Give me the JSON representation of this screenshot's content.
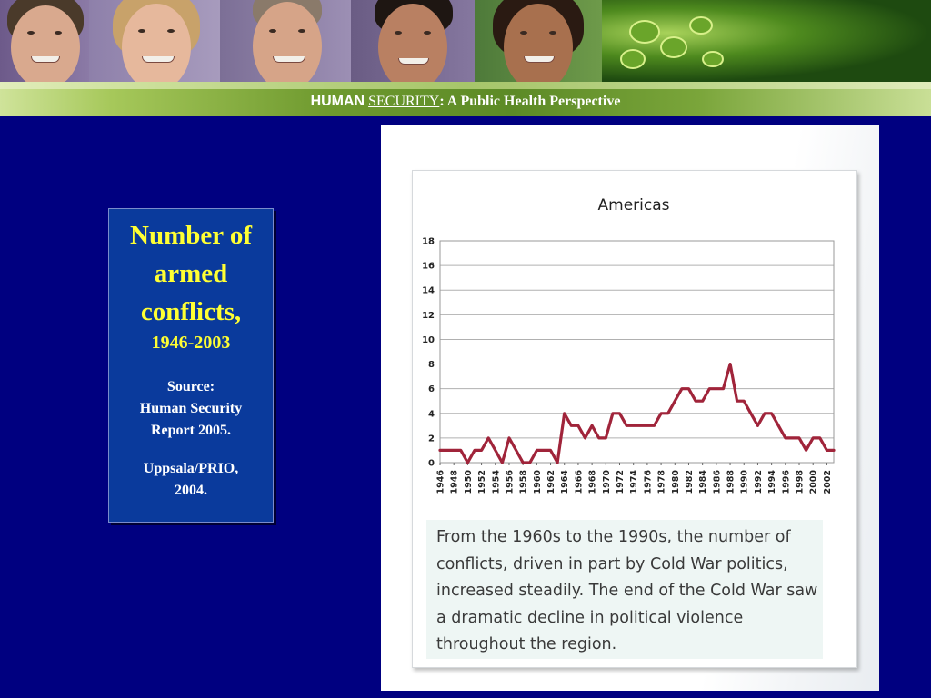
{
  "header": {
    "title_word1": "HUMAN",
    "title_word2": "SECURITY",
    "title_rest": ": A Public Health Perspective"
  },
  "info_box": {
    "title_line1": "Number of",
    "title_line2": "armed",
    "title_line3": "conflicts,",
    "years": "1946-2003",
    "source_label": "Source:",
    "source_line1": "Human Security",
    "source_line2": "Report 2005.",
    "source2_line1": "Uppsala/PRIO,",
    "source2_line2": "2004."
  },
  "caption": "From the 1960s to the 1990s, the number of conflicts, driven in part by Cold War politics, increased steadily. The end of the Cold War saw a dramatic decline in political violence throughout the region.",
  "colors": {
    "line": "#a0243a",
    "background": "#000080",
    "title_yellow": "#ffff33"
  },
  "chart_data": {
    "type": "line",
    "title": "Americas",
    "xlabel": "",
    "ylabel": "",
    "ylim": [
      0,
      18
    ],
    "yticks": [
      0,
      2,
      4,
      6,
      8,
      10,
      12,
      14,
      16,
      18
    ],
    "xticks": [
      "1946",
      "1948",
      "1950",
      "1952",
      "1954",
      "1956",
      "1958",
      "1960",
      "1962",
      "1964",
      "1966",
      "1968",
      "1970",
      "1972",
      "1974",
      "1976",
      "1978",
      "1980",
      "1982",
      "1984",
      "1986",
      "1988",
      "1990",
      "1992",
      "1994",
      "1996",
      "1998",
      "2000",
      "2002"
    ],
    "grid": true,
    "x": [
      1946,
      1947,
      1948,
      1949,
      1950,
      1951,
      1952,
      1953,
      1954,
      1955,
      1956,
      1957,
      1958,
      1959,
      1960,
      1961,
      1962,
      1963,
      1964,
      1965,
      1966,
      1967,
      1968,
      1969,
      1970,
      1971,
      1972,
      1973,
      1974,
      1975,
      1976,
      1977,
      1978,
      1979,
      1980,
      1981,
      1982,
      1983,
      1984,
      1985,
      1986,
      1987,
      1988,
      1989,
      1990,
      1991,
      1992,
      1993,
      1994,
      1995,
      1996,
      1997,
      1998,
      1999,
      2000,
      2001,
      2002,
      2003
    ],
    "series": [
      {
        "values": [
          1,
          1,
          1,
          1,
          0,
          1,
          1,
          2,
          1,
          0,
          2,
          1,
          0,
          0,
          1,
          1,
          1,
          0,
          4,
          3,
          3,
          2,
          3,
          2,
          2,
          4,
          4,
          3,
          3,
          3,
          3,
          3,
          4,
          4,
          5,
          6,
          6,
          5,
          5,
          6,
          6,
          6,
          8,
          5,
          5,
          4,
          3,
          4,
          4,
          3,
          2,
          2,
          2,
          1,
          2,
          2,
          1,
          1
        ]
      }
    ]
  }
}
